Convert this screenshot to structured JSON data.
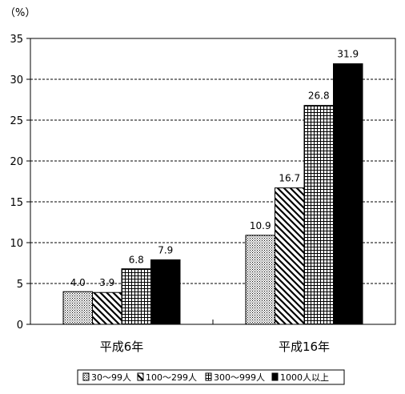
{
  "chart_data": {
    "type": "bar",
    "unit": "（%）",
    "categories": [
      "平成6年",
      "平成16年"
    ],
    "series": [
      {
        "name": "30～99人",
        "values": [
          4.0,
          10.9
        ],
        "labels": [
          "4.0",
          "10.9"
        ],
        "pattern": "dots"
      },
      {
        "name": "100～299人",
        "values": [
          3.9,
          16.7
        ],
        "labels": [
          "3.9",
          "16.7"
        ],
        "pattern": "diagonal"
      },
      {
        "name": "300～999人",
        "values": [
          6.8,
          26.8
        ],
        "labels": [
          "6.8",
          "26.8"
        ],
        "pattern": "grid"
      },
      {
        "name": "1000人以上",
        "values": [
          7.9,
          31.9
        ],
        "labels": [
          "7.9",
          "31.9"
        ],
        "pattern": "solid"
      }
    ],
    "yticks": [
      "0",
      "5",
      "10",
      "15",
      "20",
      "25",
      "30",
      "35"
    ],
    "ylim": [
      0,
      35
    ],
    "grid": true,
    "legend_position": "bottom"
  }
}
